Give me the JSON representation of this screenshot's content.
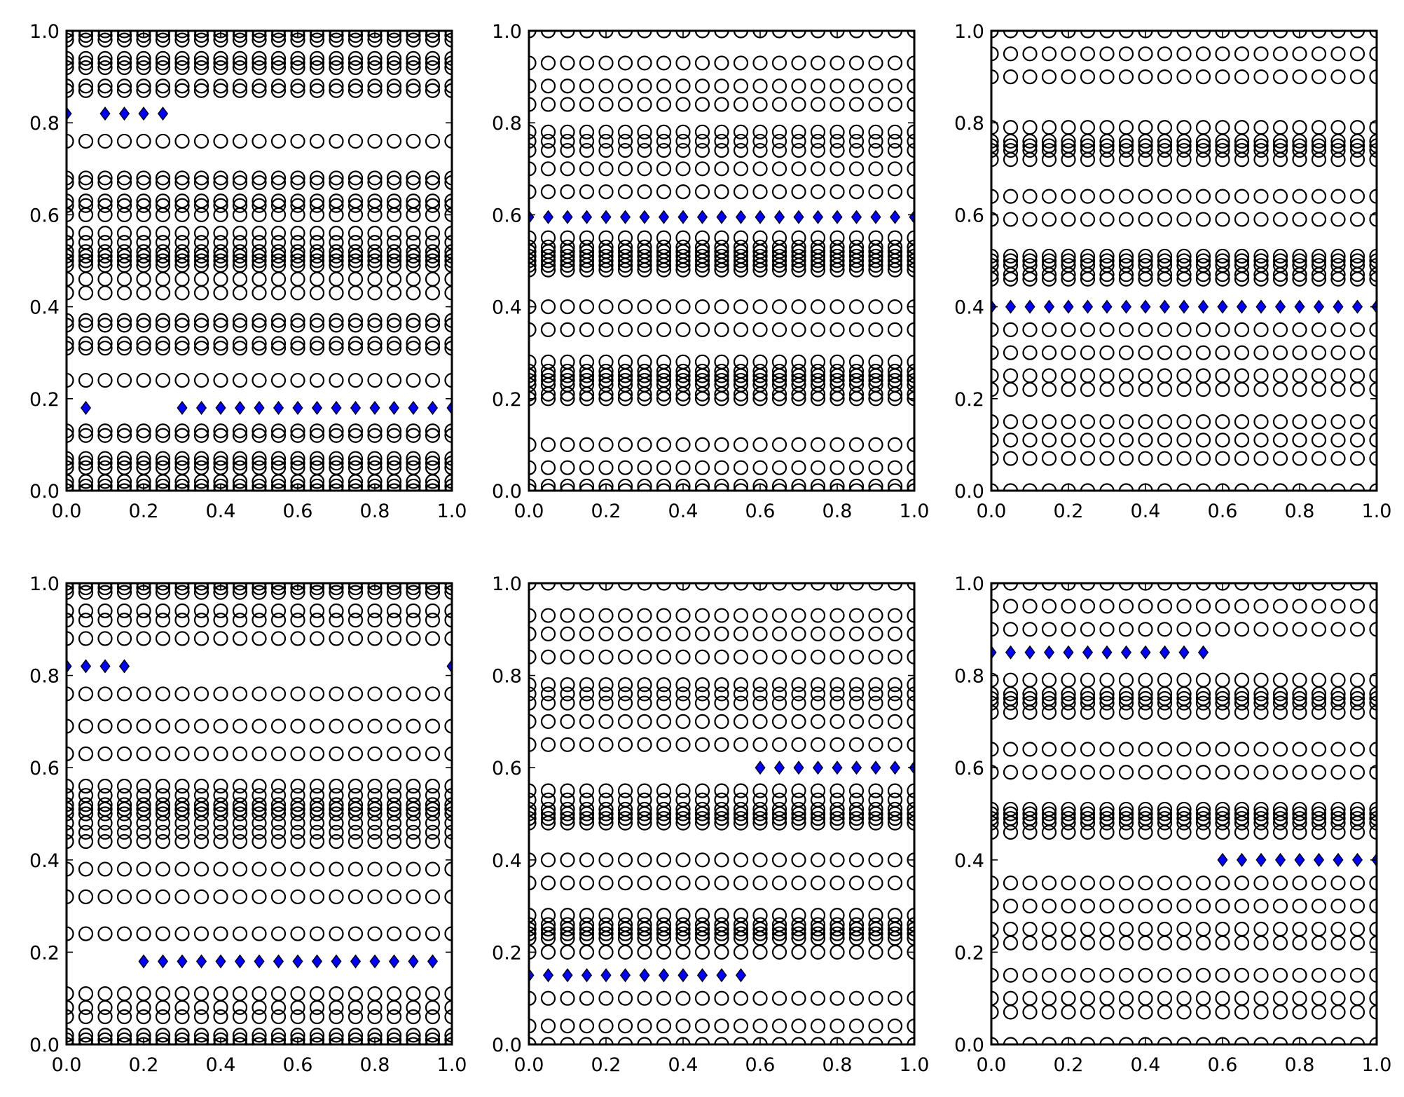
{
  "colors": {
    "diamond_fill": "#0000ff",
    "marker_edge": "#000000",
    "background": "#ffffff"
  },
  "chart_data": [
    {
      "type": "scatter",
      "position": "top-left",
      "xlim": [
        0,
        1
      ],
      "ylim": [
        0,
        1
      ],
      "xticks": [
        "0.0",
        "0.2",
        "0.4",
        "0.6",
        "0.8",
        "1.0"
      ],
      "yticks": [
        "0.0",
        "0.2",
        "0.4",
        "0.6",
        "0.8",
        "1.0"
      ],
      "x": [
        0.0,
        0.05,
        0.1,
        0.15,
        0.2,
        0.25,
        0.3,
        0.35,
        0.4,
        0.45,
        0.5,
        0.55,
        0.6,
        0.65,
        0.7,
        0.75,
        0.8,
        0.85,
        0.9,
        0.95,
        1.0
      ],
      "circle_rows": [
        0.0,
        0.01,
        0.02,
        0.05,
        0.06,
        0.07,
        0.12,
        0.13,
        0.24,
        0.31,
        0.32,
        0.36,
        0.37,
        0.43,
        0.46,
        0.49,
        0.5,
        0.51,
        0.52,
        0.54,
        0.56,
        0.6,
        0.62,
        0.63,
        0.67,
        0.68,
        0.76,
        0.87,
        0.88,
        0.92,
        0.93,
        0.94,
        0.98,
        0.99,
        1.0
      ],
      "diamonds": [
        {
          "x": [
            0.0,
            0.1,
            0.15,
            0.2,
            0.25
          ],
          "y": 0.82
        },
        {
          "x": [
            0.05
          ],
          "y": 0.18
        },
        {
          "x": [
            0.3,
            0.35,
            0.4,
            0.45,
            0.5,
            0.55,
            0.6,
            0.65,
            0.7,
            0.75,
            0.8,
            0.85,
            0.9,
            0.95,
            1.0
          ],
          "y": 0.18
        }
      ]
    },
    {
      "type": "scatter",
      "position": "top-center",
      "xlim": [
        0,
        1
      ],
      "ylim": [
        0,
        1
      ],
      "xticks": [
        "0.0",
        "0.2",
        "0.4",
        "0.6",
        "0.8",
        "1.0"
      ],
      "yticks": [
        "0.0",
        "0.2",
        "0.4",
        "0.6",
        "0.8",
        "1.0"
      ],
      "x": [
        0.0,
        0.05,
        0.1,
        0.15,
        0.2,
        0.25,
        0.3,
        0.35,
        0.4,
        0.45,
        0.5,
        0.55,
        0.6,
        0.65,
        0.7,
        0.75,
        0.8,
        0.85,
        0.9,
        0.95,
        1.0
      ],
      "circle_rows": [
        0.0,
        0.01,
        0.05,
        0.1,
        0.2,
        0.21,
        0.23,
        0.24,
        0.25,
        0.26,
        0.28,
        0.35,
        0.4,
        0.48,
        0.49,
        0.5,
        0.51,
        0.52,
        0.53,
        0.55,
        0.65,
        0.7,
        0.74,
        0.76,
        0.78,
        0.84,
        0.88,
        0.93,
        1.0
      ],
      "diamonds": [
        {
          "x": [
            0.0,
            0.05,
            0.1,
            0.15,
            0.2,
            0.25,
            0.3,
            0.35,
            0.4,
            0.45,
            0.5,
            0.55,
            0.6,
            0.65,
            0.7,
            0.75,
            0.8,
            0.85,
            0.9,
            0.95,
            1.0
          ],
          "y": 0.595
        }
      ]
    },
    {
      "type": "scatter",
      "position": "top-right",
      "xlim": [
        0,
        1
      ],
      "ylim": [
        0,
        1
      ],
      "xticks": [
        "0.0",
        "0.2",
        "0.4",
        "0.6",
        "0.8",
        "1.0"
      ],
      "yticks": [
        "0.0",
        "0.2",
        "0.4",
        "0.6",
        "0.8",
        "1.0"
      ],
      "x": [
        0.0,
        0.05,
        0.1,
        0.15,
        0.2,
        0.25,
        0.3,
        0.35,
        0.4,
        0.45,
        0.5,
        0.55,
        0.6,
        0.65,
        0.7,
        0.75,
        0.8,
        0.85,
        0.9,
        0.95,
        1.0
      ],
      "circle_rows": [
        0.0,
        0.07,
        0.11,
        0.15,
        0.22,
        0.25,
        0.3,
        0.35,
        0.46,
        0.47,
        0.49,
        0.5,
        0.51,
        0.59,
        0.64,
        0.72,
        0.74,
        0.75,
        0.76,
        0.79,
        0.9,
        0.95,
        1.0
      ],
      "diamonds": [
        {
          "x": [
            0.0,
            0.05,
            0.1,
            0.15,
            0.2,
            0.25,
            0.3,
            0.35,
            0.4,
            0.45,
            0.5,
            0.55,
            0.6,
            0.65,
            0.7,
            0.75,
            0.8,
            0.85,
            0.9,
            0.95,
            1.0
          ],
          "y": 0.4
        }
      ]
    },
    {
      "type": "scatter",
      "position": "bottom-left",
      "xlim": [
        0,
        1
      ],
      "ylim": [
        0,
        1
      ],
      "xticks": [
        "0.0",
        "0.2",
        "0.4",
        "0.6",
        "0.8",
        "1.0"
      ],
      "yticks": [
        "0.0",
        "0.2",
        "0.4",
        "0.6",
        "0.8",
        "1.0"
      ],
      "x": [
        0.0,
        0.05,
        0.1,
        0.15,
        0.2,
        0.25,
        0.3,
        0.35,
        0.4,
        0.45,
        0.5,
        0.55,
        0.6,
        0.65,
        0.7,
        0.75,
        0.8,
        0.85,
        0.9,
        0.95,
        1.0
      ],
      "circle_rows": [
        0.0,
        0.01,
        0.02,
        0.06,
        0.08,
        0.11,
        0.24,
        0.32,
        0.38,
        0.44,
        0.46,
        0.48,
        0.5,
        0.51,
        0.52,
        0.54,
        0.56,
        0.63,
        0.69,
        0.76,
        0.88,
        0.92,
        0.94,
        0.98,
        0.99,
        1.0
      ],
      "diamonds": [
        {
          "x": [
            0.0,
            0.05,
            0.1,
            0.15,
            1.0
          ],
          "y": 0.82
        },
        {
          "x": [
            0.2,
            0.25,
            0.3,
            0.35,
            0.4,
            0.45,
            0.5,
            0.55,
            0.6,
            0.65,
            0.7,
            0.75,
            0.8,
            0.85,
            0.9,
            0.95
          ],
          "y": 0.18
        }
      ]
    },
    {
      "type": "scatter",
      "position": "bottom-center",
      "xlim": [
        0,
        1
      ],
      "ylim": [
        0,
        1
      ],
      "xticks": [
        "0.0",
        "0.2",
        "0.4",
        "0.6",
        "0.8",
        "1.0"
      ],
      "yticks": [
        "0.0",
        "0.2",
        "0.4",
        "0.6",
        "0.8",
        "1.0"
      ],
      "x": [
        0.0,
        0.05,
        0.1,
        0.15,
        0.2,
        0.25,
        0.3,
        0.35,
        0.4,
        0.45,
        0.5,
        0.55,
        0.6,
        0.65,
        0.7,
        0.75,
        0.8,
        0.85,
        0.9,
        0.95,
        1.0
      ],
      "circle_rows": [
        0.0,
        0.04,
        0.1,
        0.2,
        0.23,
        0.24,
        0.25,
        0.26,
        0.28,
        0.35,
        0.4,
        0.48,
        0.49,
        0.5,
        0.51,
        0.53,
        0.55,
        0.65,
        0.7,
        0.74,
        0.76,
        0.78,
        0.84,
        0.89,
        0.93,
        1.0
      ],
      "diamonds": [
        {
          "x": [
            0.6,
            0.65,
            0.7,
            0.75,
            0.8,
            0.85,
            0.9,
            0.95,
            1.0
          ],
          "y": 0.6
        },
        {
          "x": [
            0.0,
            0.05,
            0.1,
            0.15,
            0.2,
            0.25,
            0.3,
            0.35,
            0.4,
            0.45,
            0.5,
            0.55
          ],
          "y": 0.15
        }
      ]
    },
    {
      "type": "scatter",
      "position": "bottom-right",
      "xlim": [
        0,
        1
      ],
      "ylim": [
        0,
        1
      ],
      "xticks": [
        "0.0",
        "0.2",
        "0.4",
        "0.6",
        "0.8",
        "1.0"
      ],
      "yticks": [
        "0.0",
        "0.2",
        "0.4",
        "0.6",
        "0.8",
        "1.0"
      ],
      "x": [
        0.0,
        0.05,
        0.1,
        0.15,
        0.2,
        0.25,
        0.3,
        0.35,
        0.4,
        0.45,
        0.5,
        0.55,
        0.6,
        0.65,
        0.7,
        0.75,
        0.8,
        0.85,
        0.9,
        0.95,
        1.0
      ],
      "circle_rows": [
        0.0,
        0.07,
        0.1,
        0.15,
        0.22,
        0.25,
        0.3,
        0.35,
        0.46,
        0.48,
        0.49,
        0.5,
        0.51,
        0.59,
        0.64,
        0.72,
        0.74,
        0.75,
        0.76,
        0.79,
        0.9,
        0.95,
        1.0
      ],
      "diamonds": [
        {
          "x": [
            0.0,
            0.05,
            0.1,
            0.15,
            0.2,
            0.25,
            0.3,
            0.35,
            0.4,
            0.45,
            0.5,
            0.55
          ],
          "y": 0.85
        },
        {
          "x": [
            0.6,
            0.65,
            0.7,
            0.75,
            0.8,
            0.85,
            0.9,
            0.95,
            1.0
          ],
          "y": 0.4
        }
      ]
    }
  ]
}
